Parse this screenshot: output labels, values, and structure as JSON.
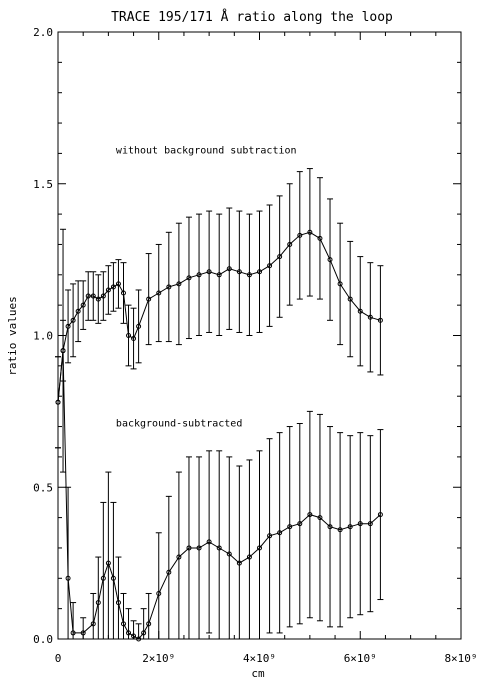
{
  "chart_data": {
    "type": "line",
    "title": "TRACE 195/171 Å ratio along the loop",
    "xlabel": "cm",
    "ylabel": "ratio values",
    "xlim": [
      0,
      8000000000
    ],
    "ylim": [
      0,
      2
    ],
    "x_ticks": [
      {
        "value": 0,
        "label": "0"
      },
      {
        "value": 2000000000,
        "label": "2×10⁹"
      },
      {
        "value": 4000000000,
        "label": "4×10⁹"
      },
      {
        "value": 6000000000,
        "label": "6×10⁹"
      },
      {
        "value": 8000000000,
        "label": "8×10⁹"
      }
    ],
    "y_ticks": [
      {
        "value": 0,
        "label": "0.0"
      },
      {
        "value": 0.5,
        "label": "0.5"
      },
      {
        "value": 1.0,
        "label": "1.0"
      },
      {
        "value": 1.5,
        "label": "1.5"
      },
      {
        "value": 2.0,
        "label": "2.0"
      }
    ],
    "grid": false,
    "annotations": [
      {
        "text": "without background subtraction",
        "x": 1150000000,
        "y": 1.6
      },
      {
        "text": "background-subtracted",
        "x": 1150000000,
        "y": 0.7
      }
    ],
    "series": [
      {
        "x": [
          0,
          100000000,
          200000000,
          300000000,
          400000000,
          500000000,
          600000000,
          700000000,
          800000000,
          900000000,
          1000000000,
          1100000000,
          1200000000,
          1300000000,
          1400000000,
          1500000000,
          1600000000,
          1800000000,
          2000000000,
          2200000000,
          2400000000,
          2600000000,
          2800000000,
          3000000000,
          3200000000,
          3400000000,
          3600000000,
          3800000000,
          4000000000,
          4200000000,
          4400000000,
          4600000000,
          4800000000,
          5000000000,
          5200000000,
          5400000000,
          5600000000,
          5800000000,
          6000000000,
          6200000000,
          6400000000
        ],
        "y": [
          0.78,
          0.95,
          1.03,
          1.05,
          1.08,
          1.1,
          1.13,
          1.13,
          1.12,
          1.13,
          1.15,
          1.16,
          1.17,
          1.14,
          1.0,
          0.99,
          1.03,
          1.12,
          1.14,
          1.16,
          1.17,
          1.19,
          1.2,
          1.21,
          1.2,
          1.22,
          1.21,
          1.2,
          1.21,
          1.23,
          1.26,
          1.3,
          1.33,
          1.34,
          1.32,
          1.25,
          1.17,
          1.12,
          1.08,
          1.06,
          1.05
        ],
        "err": [
          0.15,
          0.1,
          0.12,
          0.12,
          0.1,
          0.08,
          0.08,
          0.08,
          0.08,
          0.08,
          0.08,
          0.08,
          0.08,
          0.1,
          0.1,
          0.1,
          0.12,
          0.15,
          0.16,
          0.18,
          0.2,
          0.2,
          0.2,
          0.2,
          0.2,
          0.2,
          0.2,
          0.2,
          0.2,
          0.2,
          0.2,
          0.2,
          0.21,
          0.21,
          0.2,
          0.2,
          0.2,
          0.19,
          0.18,
          0.18,
          0.18
        ]
      },
      {
        "x": [
          0,
          100000000,
          200000000,
          300000000,
          500000000,
          700000000,
          800000000,
          900000000,
          1000000000,
          1100000000,
          1200000000,
          1300000000,
          1400000000,
          1500000000,
          1600000000,
          1700000000,
          1800000000,
          2000000000,
          2200000000,
          2400000000,
          2600000000,
          2800000000,
          3000000000,
          3200000000,
          3400000000,
          3600000000,
          3800000000,
          4000000000,
          4200000000,
          4400000000,
          4600000000,
          4800000000,
          5000000000,
          5200000000,
          5400000000,
          5600000000,
          5800000000,
          6000000000,
          6200000000,
          6400000000
        ],
        "y": [
          0.78,
          0.95,
          0.2,
          0.02,
          0.02,
          0.05,
          0.12,
          0.2,
          0.25,
          0.2,
          0.12,
          0.05,
          0.02,
          0.01,
          0.0,
          0.02,
          0.05,
          0.15,
          0.22,
          0.27,
          0.3,
          0.3,
          0.32,
          0.3,
          0.28,
          0.25,
          0.27,
          0.3,
          0.34,
          0.35,
          0.37,
          0.38,
          0.41,
          0.4,
          0.37,
          0.36,
          0.37,
          0.38,
          0.38,
          0.41
        ],
        "err": [
          0.15,
          0.4,
          0.3,
          0.1,
          0.05,
          0.1,
          0.15,
          0.25,
          0.3,
          0.25,
          0.15,
          0.1,
          0.08,
          0.05,
          0.05,
          0.08,
          0.1,
          0.2,
          0.25,
          0.28,
          0.3,
          0.3,
          0.3,
          0.32,
          0.32,
          0.32,
          0.32,
          0.32,
          0.32,
          0.33,
          0.33,
          0.33,
          0.34,
          0.34,
          0.33,
          0.32,
          0.3,
          0.3,
          0.29,
          0.28
        ]
      }
    ]
  }
}
